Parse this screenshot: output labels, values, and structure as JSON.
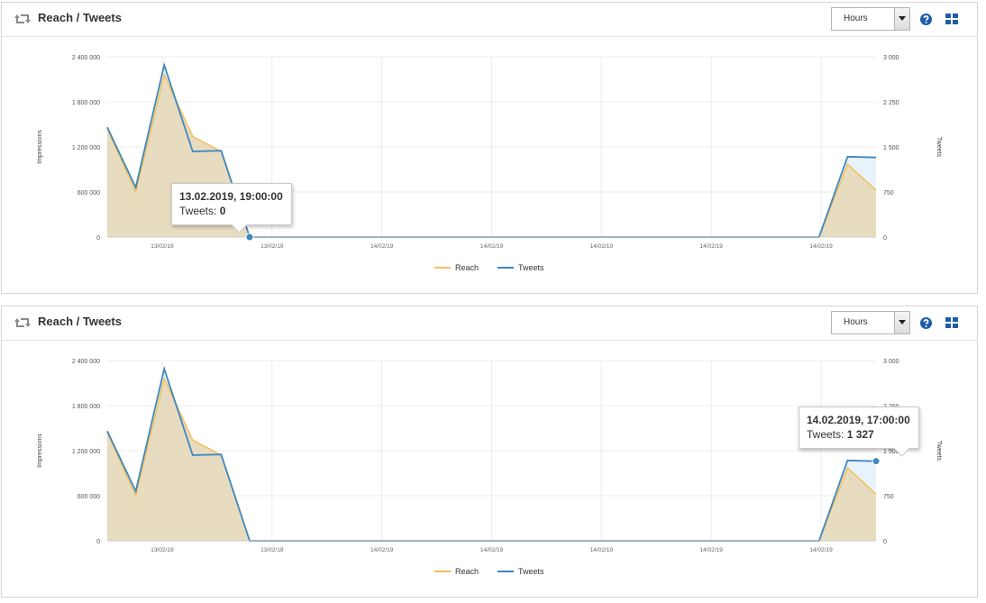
{
  "colors": {
    "reach_line": "#f2c15a",
    "reach_fill": "#e8dcc0",
    "tweets_line": "#3e87bf",
    "tweets_fill": "#e8f2fb",
    "grid": "#ececec",
    "brand_icon": "#1f5da8"
  },
  "panels": [
    {
      "title": "Reach / Tweets",
      "select": {
        "value": "Hours"
      },
      "tooltip": {
        "title": "13.02.2019, 19:00:00",
        "label": "Tweets:",
        "value": "0",
        "point_index": 5
      }
    },
    {
      "title": "Reach / Tweets",
      "select": {
        "value": "Hours"
      },
      "tooltip": {
        "title": "14.02.2019, 17:00:00",
        "label": "Tweets:",
        "value": "1 327",
        "point_index": 27
      }
    }
  ],
  "chart_data": [
    {
      "type": "area",
      "title": "Reach / Tweets",
      "ylabel": "Impressions",
      "ylabel_right": "Tweets",
      "y_ticks": [
        "0",
        "600 000",
        "1 200 000",
        "1 800 000",
        "2 400 000"
      ],
      "y_right_ticks": [
        "0",
        "750",
        "1 500",
        "2 250",
        "3 000"
      ],
      "ylim": [
        0,
        2400000
      ],
      "ylim_right": [
        0,
        3000
      ],
      "x_ticks": [
        "13/02/19",
        "13/02/19",
        "14/02/19",
        "14/02/19",
        "14/02/19",
        "14/02/19",
        "14/02/19"
      ],
      "legend": [
        "Reach",
        "Tweets"
      ],
      "legend_position": "bottom-center",
      "grid": true,
      "x_hours": [
        0,
        1,
        2,
        3,
        4,
        5,
        6,
        7,
        8,
        9,
        10,
        11,
        12,
        13,
        14,
        15,
        16,
        17,
        18,
        19,
        20,
        21,
        22,
        23,
        24,
        25,
        26,
        27
      ],
      "series": [
        {
          "name": "Reach",
          "axis": "left",
          "values": [
            1440000,
            600000,
            2160000,
            1340000,
            1140000,
            0,
            0,
            0,
            0,
            0,
            0,
            0,
            0,
            0,
            0,
            0,
            0,
            0,
            0,
            0,
            0,
            0,
            0,
            0,
            0,
            0,
            970000,
            620000
          ]
        },
        {
          "name": "Tweets",
          "axis": "left",
          "values": [
            1460000,
            660000,
            2290000,
            1140000,
            1150000,
            0,
            0,
            0,
            0,
            0,
            0,
            0,
            0,
            0,
            0,
            0,
            0,
            0,
            0,
            0,
            0,
            0,
            0,
            0,
            0,
            0,
            1070000,
            1060000
          ]
        }
      ]
    },
    {
      "type": "area",
      "title": "Reach / Tweets",
      "ylabel": "Impressions",
      "ylabel_right": "Tweets",
      "y_ticks": [
        "0",
        "600 000",
        "1 200 000",
        "1 800 000",
        "2 400 000"
      ],
      "y_right_ticks": [
        "0",
        "750",
        "1 500",
        "2 250",
        "3 000"
      ],
      "ylim": [
        0,
        2400000
      ],
      "ylim_right": [
        0,
        3000
      ],
      "x_ticks": [
        "13/02/19",
        "13/02/19",
        "14/02/19",
        "14/02/19",
        "14/02/19",
        "14/02/19",
        "14/02/19"
      ],
      "legend": [
        "Reach",
        "Tweets"
      ],
      "legend_position": "bottom-center",
      "grid": true,
      "x_hours": [
        0,
        1,
        2,
        3,
        4,
        5,
        6,
        7,
        8,
        9,
        10,
        11,
        12,
        13,
        14,
        15,
        16,
        17,
        18,
        19,
        20,
        21,
        22,
        23,
        24,
        25,
        26,
        27
      ],
      "series": [
        {
          "name": "Reach",
          "axis": "left",
          "values": [
            1440000,
            600000,
            2160000,
            1340000,
            1140000,
            0,
            0,
            0,
            0,
            0,
            0,
            0,
            0,
            0,
            0,
            0,
            0,
            0,
            0,
            0,
            0,
            0,
            0,
            0,
            0,
            0,
            970000,
            620000
          ]
        },
        {
          "name": "Tweets",
          "axis": "left",
          "values": [
            1460000,
            660000,
            2290000,
            1140000,
            1150000,
            0,
            0,
            0,
            0,
            0,
            0,
            0,
            0,
            0,
            0,
            0,
            0,
            0,
            0,
            0,
            0,
            0,
            0,
            0,
            0,
            0,
            1070000,
            1060000
          ]
        }
      ]
    }
  ]
}
